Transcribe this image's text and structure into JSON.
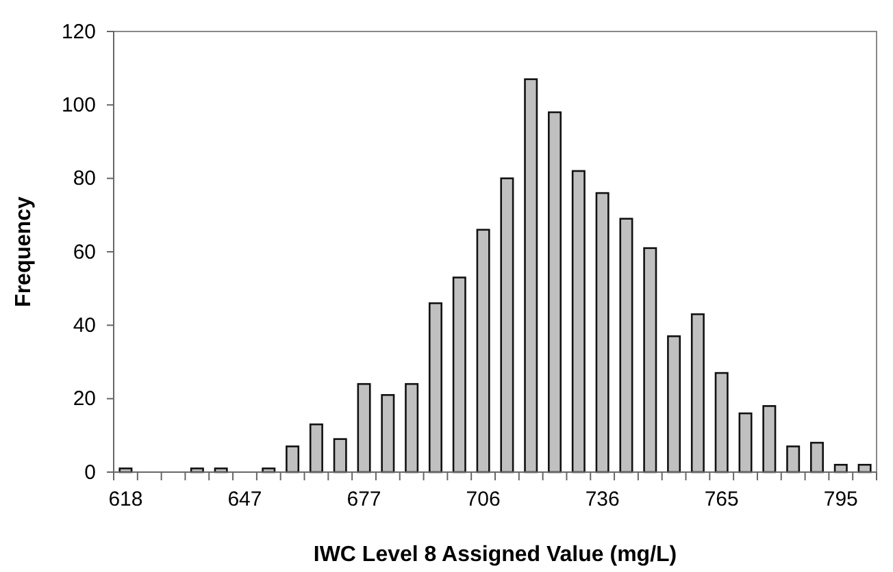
{
  "chart_data": {
    "type": "bar",
    "xlabel": "IWC Level 8 Assigned Value (mg/L)",
    "ylabel": "Frequency",
    "categories": [
      "618",
      null,
      null,
      null,
      null,
      "647",
      null,
      null,
      null,
      null,
      "677",
      null,
      null,
      null,
      null,
      "706",
      null,
      null,
      null,
      null,
      "736",
      null,
      null,
      null,
      null,
      "765",
      null,
      null,
      null,
      null,
      "795",
      null
    ],
    "values": [
      1,
      0,
      0,
      1,
      1,
      0,
      1,
      7,
      13,
      9,
      24,
      21,
      24,
      46,
      53,
      66,
      80,
      107,
      98,
      82,
      76,
      69,
      61,
      37,
      43,
      27,
      16,
      18,
      7,
      8,
      2,
      2
    ],
    "color": "#c0c0c0",
    "ylim": [
      0,
      120
    ],
    "yticks": [
      0,
      20,
      40,
      60,
      80,
      100,
      120
    ],
    "grid": false
  }
}
